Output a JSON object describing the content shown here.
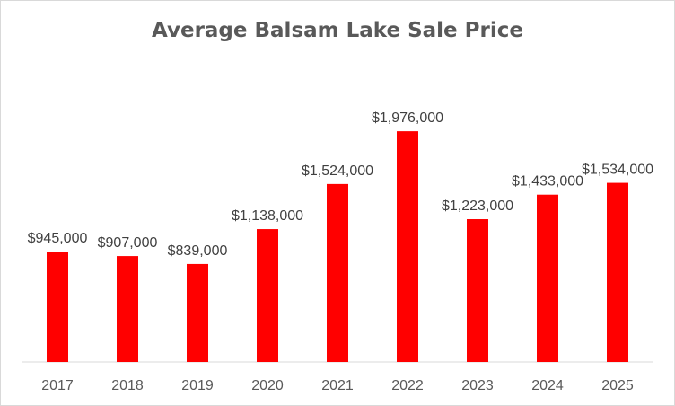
{
  "chart_data": {
    "type": "bar",
    "title": "Average Balsam Lake Sale Price",
    "xlabel": "",
    "ylabel": "",
    "categories": [
      "2017",
      "2018",
      "2019",
      "2020",
      "2021",
      "2022",
      "2023",
      "2024",
      "2025"
    ],
    "values": [
      945000,
      907000,
      839000,
      1138000,
      1524000,
      1976000,
      1223000,
      1433000,
      1534000
    ],
    "data_labels": [
      "$945,000",
      "$907,000",
      "$839,000",
      "$1,138,000",
      "$1,524,000",
      "$1,976,000",
      "$1,223,000",
      "$1,433,000",
      "$1,534,000"
    ],
    "ylim": [
      0,
      2000000
    ],
    "grid": false,
    "legend": "none",
    "bar_color": "#ff0000",
    "axis_color": "#d9d9d9"
  }
}
